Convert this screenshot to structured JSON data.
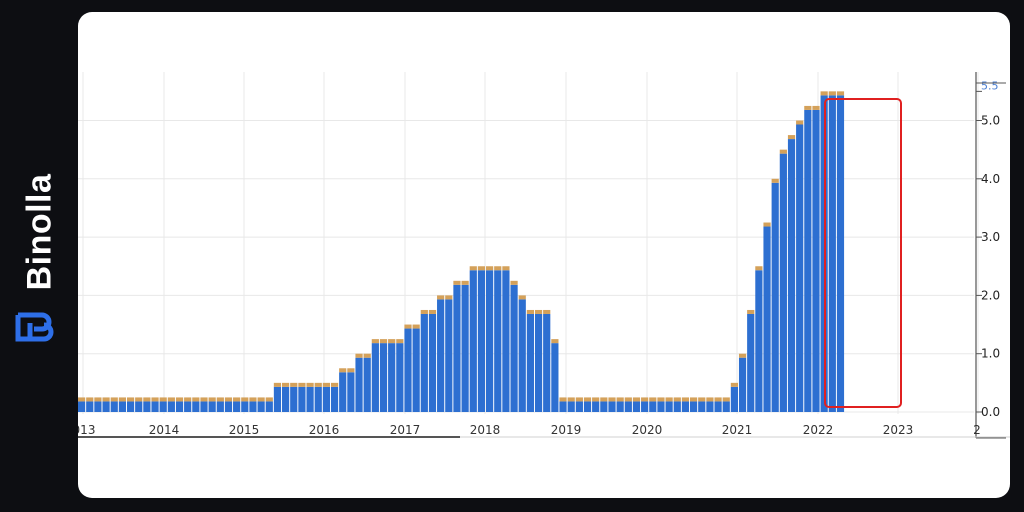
{
  "brand": {
    "name": "Binolla",
    "logo_icon": "binolla-b-icon",
    "accent": "#2e6fe8"
  },
  "colors": {
    "bar": "#2d6fd1",
    "bar_cap": "#d4a15a",
    "grid": "#e8e8e8",
    "highlight": "#e02020"
  },
  "chart_data": {
    "type": "bar",
    "title": "",
    "xlabel": "",
    "ylabel": "",
    "ylim": [
      0,
      5.5
    ],
    "y_ticks": [
      "0.0",
      "1.0",
      "2.0",
      "3.0",
      "4.0",
      "5.0",
      "5.5"
    ],
    "x_ticks": [
      "013",
      "2014",
      "2015",
      "2016",
      "2017",
      "2018",
      "2019",
      "2020",
      "2021",
      "2022",
      "2023",
      "2"
    ],
    "grid": true,
    "annotations": [
      "red rectangle highlighting 2022 rate hikes"
    ],
    "values": [
      0.25,
      0.25,
      0.25,
      0.25,
      0.25,
      0.25,
      0.25,
      0.25,
      0.25,
      0.25,
      0.25,
      0.25,
      0.25,
      0.25,
      0.25,
      0.25,
      0.25,
      0.25,
      0.25,
      0.25,
      0.25,
      0.25,
      0.25,
      0.25,
      0.5,
      0.5,
      0.5,
      0.5,
      0.5,
      0.5,
      0.5,
      0.5,
      0.75,
      0.75,
      1.0,
      1.0,
      1.25,
      1.25,
      1.25,
      1.25,
      1.5,
      1.5,
      1.75,
      1.75,
      2.0,
      2.0,
      2.25,
      2.25,
      2.5,
      2.5,
      2.5,
      2.5,
      2.5,
      2.25,
      2.0,
      1.75,
      1.75,
      1.75,
      1.25,
      0.25,
      0.25,
      0.25,
      0.25,
      0.25,
      0.25,
      0.25,
      0.25,
      0.25,
      0.25,
      0.25,
      0.25,
      0.25,
      0.25,
      0.25,
      0.25,
      0.25,
      0.25,
      0.25,
      0.25,
      0.25,
      0.5,
      1.0,
      1.75,
      2.5,
      3.25,
      4.0,
      4.5,
      4.75,
      5.0,
      5.25,
      5.25,
      5.5,
      5.5,
      5.5
    ]
  }
}
